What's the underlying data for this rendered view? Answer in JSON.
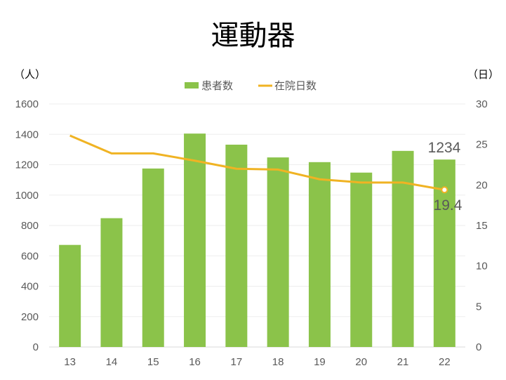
{
  "chart_data": {
    "type": "bar",
    "title": "運動器",
    "left_axis_unit": "（人）",
    "right_axis_unit": "（日）",
    "categories": [
      "13",
      "14",
      "15",
      "16",
      "17",
      "18",
      "19",
      "20",
      "21",
      "22"
    ],
    "ylim": [
      0,
      1600
    ],
    "y_ticks": [
      "0",
      "200",
      "400",
      "600",
      "800",
      "1000",
      "1200",
      "1400",
      "1600"
    ],
    "y2lim": [
      0,
      30
    ],
    "y2_ticks": [
      "0",
      "5",
      "10",
      "15",
      "20",
      "25",
      "30"
    ],
    "grid": true,
    "legend_position": "top",
    "series": [
      {
        "name": "患者数",
        "type": "bar",
        "axis": "left",
        "color": "#8BC34A",
        "values": [
          672,
          848,
          1175,
          1405,
          1332,
          1248,
          1217,
          1148,
          1291,
          1234
        ]
      },
      {
        "name": "在院日数",
        "type": "line",
        "axis": "right",
        "color": "#F0B323",
        "values": [
          26.1,
          23.9,
          23.9,
          23.0,
          22.0,
          21.9,
          20.7,
          20.3,
          20.3,
          19.4
        ]
      }
    ],
    "data_labels": {
      "bar_last": "1234",
      "line_last": "19.4"
    }
  }
}
